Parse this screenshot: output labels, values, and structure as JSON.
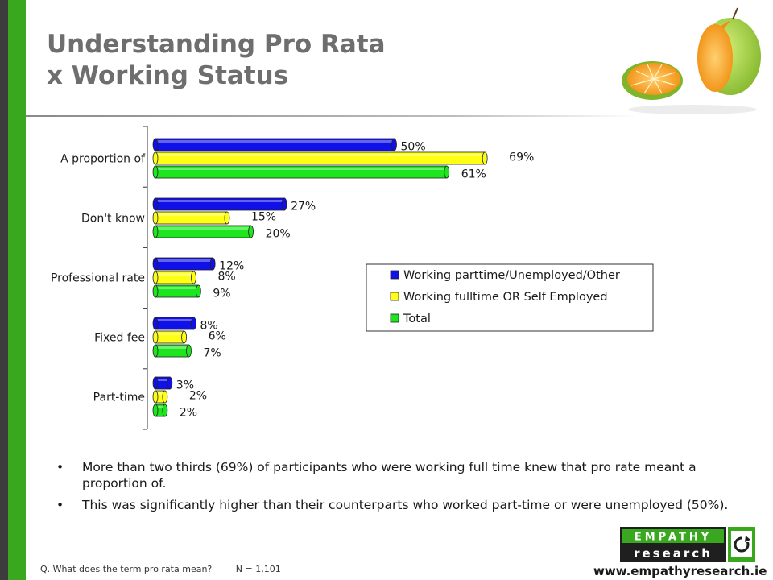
{
  "slide": {
    "title_line1": "Understanding Pro Rata",
    "title_line2": "x Working Status"
  },
  "chart_data": {
    "type": "bar",
    "orientation": "horizontal",
    "categories": [
      "A proportion of",
      "Don't know",
      "Professional rate",
      "Fixed fee",
      "Part-time"
    ],
    "series": [
      {
        "name": "Working parttime/Unemployed/Other",
        "color": "#1010e8",
        "values": [
          50,
          27,
          12,
          8,
          3
        ],
        "labels": [
          "50%",
          "27%",
          "12%",
          "8%",
          "3%"
        ]
      },
      {
        "name": "Working fulltime OR Self Employed",
        "color": "#ffff14",
        "values": [
          69,
          15,
          8,
          6,
          2
        ],
        "labels": [
          "69%",
          "15%",
          "8%",
          "6%",
          "2%"
        ]
      },
      {
        "name": "Total",
        "color": "#1ee61e",
        "values": [
          61,
          20,
          9,
          7,
          2
        ],
        "labels": [
          "61%",
          "20%",
          "9%",
          "7%",
          "2%"
        ]
      }
    ],
    "legend_position": "right",
    "grid": false
  },
  "bullets": [
    "More than two thirds (69%) of participants who were working full time knew that pro rate meant a proportion of.",
    "This was significantly higher than their counterparts who worked part-time or were unemployed (50%)."
  ],
  "footer": {
    "question": "Q. What does the term pro rata mean?",
    "sample": "N = 1,101",
    "logo_word1": "EMPATHY",
    "logo_word2": "research",
    "url": "www.empathyresearch.ie"
  },
  "decoration": {
    "image": "orange-and-apple-halves"
  }
}
